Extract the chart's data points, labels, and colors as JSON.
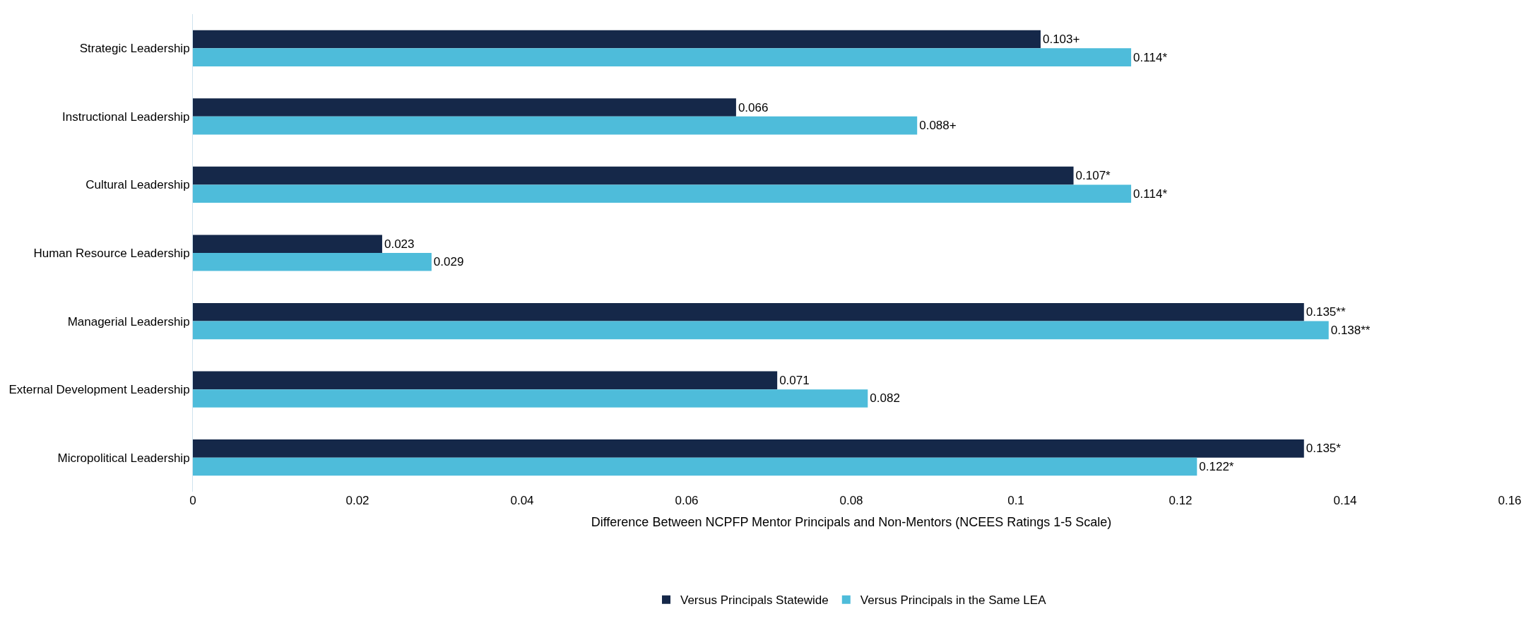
{
  "chart_data": {
    "type": "bar",
    "orientation": "horizontal",
    "xlabel": "Difference Between NCPFP Mentor Principals and Non-Mentors (NCEES Ratings 1-5 Scale)",
    "categories": [
      "Strategic Leadership",
      "Instructional Leadership",
      "Cultural Leadership",
      "Human Resource Leadership",
      "Managerial Leadership",
      "External Development Leadership",
      "Micropolitical Leadership"
    ],
    "series": [
      {
        "name": "Versus Principals Statewide",
        "color": "#152849",
        "values": [
          0.103,
          0.066,
          0.107,
          0.023,
          0.135,
          0.071,
          0.135
        ],
        "value_labels": [
          "0.103+",
          "0.066",
          "0.107*",
          "0.023",
          "0.135**",
          "0.071",
          "0.135*"
        ]
      },
      {
        "name": "Versus Principals in the Same LEA",
        "color": "#4ebcda",
        "values": [
          0.114,
          0.088,
          0.114,
          0.029,
          0.138,
          0.082,
          0.122
        ],
        "value_labels": [
          "0.114*",
          "0.088+",
          "0.114*",
          "0.029",
          "0.138**",
          "0.082",
          "0.122*"
        ]
      }
    ],
    "xlim": [
      0,
      0.16
    ],
    "xticks": [
      0,
      0.02,
      0.04,
      0.06,
      0.08,
      0.1,
      0.12,
      0.14,
      0.16
    ],
    "legend": "bottom"
  }
}
